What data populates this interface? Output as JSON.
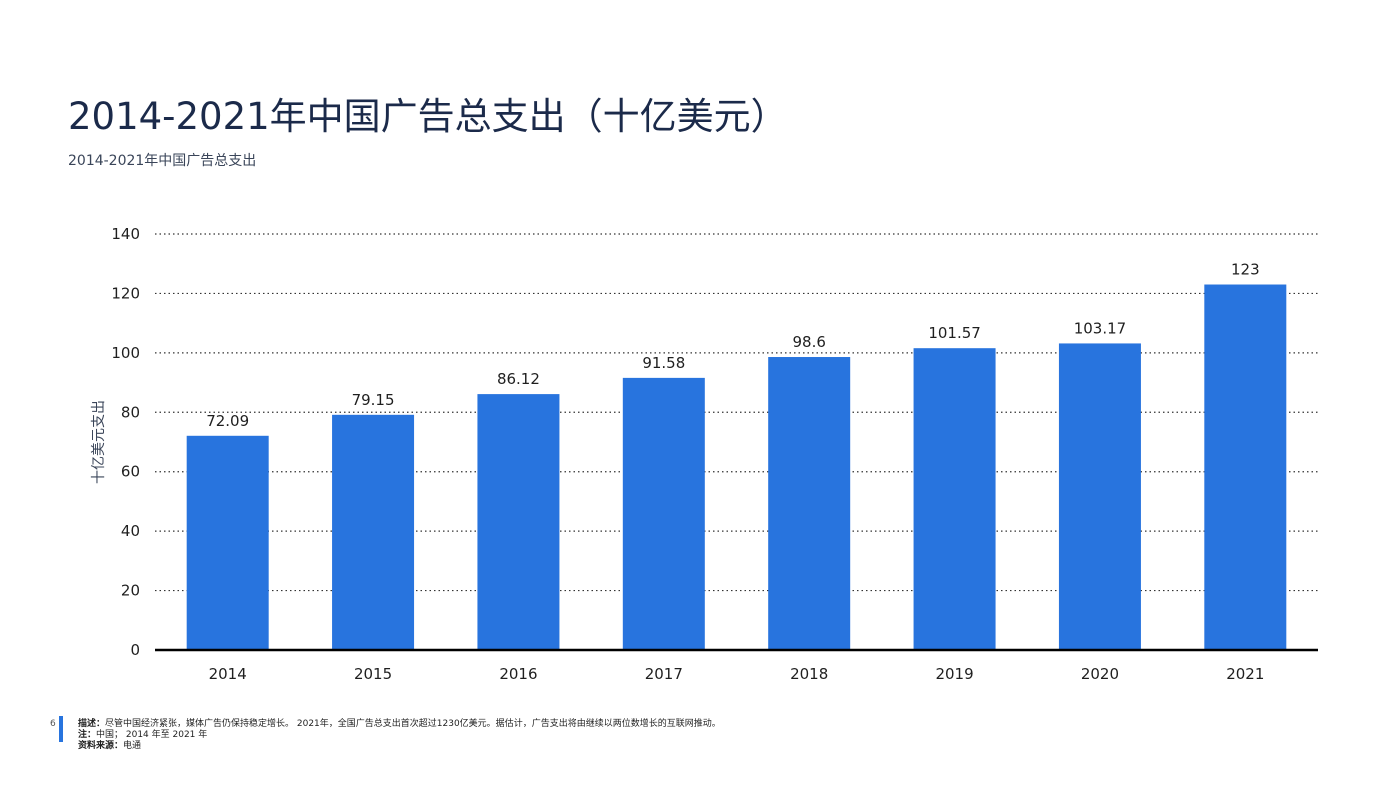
{
  "header": {
    "title": "2014-2021年中国广告总支出（十亿美元）",
    "subtitle": "2014-2021年中国广告总支出"
  },
  "footer": {
    "page_number": "6",
    "description_label": "描述：",
    "description": "尽管中国经济紧张，媒体广告仍保持稳定增长。 2021年，全国广告总支出首次超过1230亿美元。据估计，广告支出将由继续以两位数增长的互联网推动。",
    "note_label": "注：",
    "note": "中国； 2014 年至 2021 年",
    "source_label": "资料来源：",
    "source": "电通"
  },
  "colors": {
    "bar": "#2874de",
    "title": "#1b2a4a",
    "axis": "#000000",
    "grid": "#333333"
  },
  "chart_data": {
    "type": "bar",
    "categories": [
      "2014",
      "2015",
      "2016",
      "2017",
      "2018",
      "2019",
      "2020",
      "2021"
    ],
    "values": [
      72.09,
      79.15,
      86.12,
      91.58,
      98.6,
      101.57,
      103.17,
      123
    ],
    "value_labels": [
      "72.09",
      "79.15",
      "86.12",
      "91.58",
      "98.6",
      "101.57",
      "103.17",
      "123"
    ],
    "xlabel": "",
    "ylabel": "十亿美元支出",
    "ylim": [
      0,
      140
    ],
    "yticks": [
      0,
      20,
      40,
      60,
      80,
      100,
      120,
      140
    ],
    "grid": "dotted horizontal",
    "legend": "none"
  }
}
